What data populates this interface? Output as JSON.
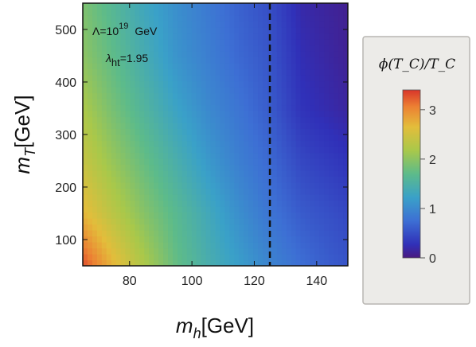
{
  "chart_data": {
    "type": "heatmap",
    "title": "",
    "xlabel": {
      "base": "m",
      "sub": "h",
      "rest": "[GeV]"
    },
    "ylabel": {
      "base": "m",
      "sub": "T",
      "rest": "[GeV]"
    },
    "xlim": [
      65,
      150
    ],
    "ylim": [
      50,
      550
    ],
    "x_ticks": [
      "80",
      "100",
      "120",
      "140"
    ],
    "x_tick_values": [
      80,
      100,
      120,
      140
    ],
    "y_ticks": [
      "100",
      "200",
      "300",
      "400",
      "500"
    ],
    "y_tick_values": [
      100,
      200,
      300,
      400,
      500
    ],
    "annotations": {
      "lambda_cutoff": {
        "prefix": "Λ=10",
        "exponent": "19",
        "unit": "GeV"
      },
      "lambda_ht": {
        "symbol": "λ",
        "sub": "ht",
        "value": "=1.95"
      }
    },
    "vertical_line": {
      "x": 125,
      "style": "dashed"
    },
    "colorbar": {
      "title": "ϕ(T_C)/T_C",
      "range": [
        0,
        3.4
      ],
      "ticks": [
        "0",
        "1",
        "2",
        "3"
      ],
      "tick_values": [
        0,
        1,
        2,
        3
      ]
    },
    "z_grid": {
      "x": [
        65,
        75,
        85,
        95,
        105,
        115,
        125,
        135,
        145,
        150
      ],
      "y": [
        50,
        150,
        250,
        350,
        450,
        550
      ],
      "values": [
        [
          3.3,
          2.7,
          2.2,
          1.75,
          1.45,
          1.2,
          0.95,
          0.75,
          0.6,
          0.55
        ],
        [
          2.7,
          2.3,
          1.95,
          1.65,
          1.35,
          1.05,
          0.8,
          0.6,
          0.5,
          0.45
        ],
        [
          2.4,
          2.05,
          1.75,
          1.45,
          1.15,
          0.9,
          0.7,
          0.45,
          0.35,
          0.3
        ],
        [
          2.2,
          1.85,
          1.55,
          1.25,
          1.0,
          0.8,
          0.6,
          0.3,
          0.2,
          0.15
        ],
        [
          2.0,
          1.7,
          1.4,
          1.1,
          0.9,
          0.7,
          0.55,
          0.25,
          0.15,
          0.1
        ],
        [
          1.9,
          1.6,
          1.3,
          1.05,
          0.85,
          0.65,
          0.5,
          0.2,
          0.12,
          0.08
        ]
      ]
    }
  }
}
